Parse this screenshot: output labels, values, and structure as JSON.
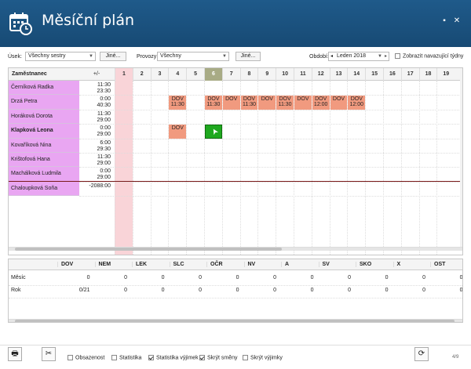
{
  "window": {
    "title": "Měsíční plán",
    "page_counter": "4/9"
  },
  "filters": {
    "usek_label": "Úsek:",
    "usek_value": "Všechny sestry",
    "usek_other": "Jiné...",
    "provozy_label": "Provozy:",
    "provozy_value": "Všechny",
    "provozy_other": "Jiné...",
    "obdobi_label": "Období:",
    "obdobi_value": "Leden 2018",
    "show_adjacent_label": "Zobrazit navazující týdny"
  },
  "plan": {
    "col_employee": "Zaměstnanec",
    "col_balance": "+/-",
    "days": [
      "1",
      "2",
      "3",
      "4",
      "5",
      "6",
      "7",
      "8",
      "9",
      "10",
      "11",
      "12",
      "13",
      "14",
      "15",
      "16",
      "17",
      "18",
      "19"
    ],
    "employees": [
      {
        "name": "Černíková Radka",
        "bal1": "11:30",
        "bal2": "23:30",
        "bold": false
      },
      {
        "name": "Drzá Petra",
        "bal1": "0:00",
        "bal2": "40:30",
        "bold": false
      },
      {
        "name": "Horáková Dorota",
        "bal1": "11:30",
        "bal2": "29:00",
        "bold": false
      },
      {
        "name": "Klapková Leona",
        "bal1": "0:00",
        "bal2": "29:00",
        "bold": true
      },
      {
        "name": "Kovaříková Nina",
        "bal1": "6:00",
        "bal2": "29:30",
        "bold": false
      },
      {
        "name": "Krištofová Hana",
        "bal1": "11:30",
        "bal2": "29:00",
        "bold": false
      },
      {
        "name": "Machálková Ludmila",
        "bal1": "0:00",
        "bal2": "29:00",
        "bold": false
      },
      {
        "name": "Chaloupková Soňa",
        "bal1": "-2088:00",
        "bal2": "",
        "bold": false
      }
    ],
    "shifts": [
      {
        "row": 1,
        "day": 4,
        "l1": "DOV",
        "l2": "11:30"
      },
      {
        "row": 1,
        "day": 6,
        "l1": "DOV",
        "l2": "11:30"
      },
      {
        "row": 1,
        "day": 7,
        "l1": "DOV",
        "l2": ""
      },
      {
        "row": 1,
        "day": 8,
        "l1": "DOV",
        "l2": "11:30"
      },
      {
        "row": 1,
        "day": 9,
        "l1": "DOV",
        "l2": ""
      },
      {
        "row": 1,
        "day": 10,
        "l1": "DOV",
        "l2": "11:30"
      },
      {
        "row": 1,
        "day": 11,
        "l1": "DOV",
        "l2": ""
      },
      {
        "row": 1,
        "day": 12,
        "l1": "DOV",
        "l2": "12:00"
      },
      {
        "row": 1,
        "day": 13,
        "l1": "DOV",
        "l2": ""
      },
      {
        "row": 1,
        "day": 14,
        "l1": "DOV",
        "l2": "12:00"
      },
      {
        "row": 3,
        "day": 4,
        "l1": "DOV",
        "l2": ""
      }
    ]
  },
  "stats": {
    "columns": [
      "DOV",
      "NEM",
      "LEK",
      "SLC",
      "OČR",
      "NV",
      "A",
      "SV",
      "SKO",
      "X",
      "OST"
    ],
    "rows": [
      {
        "label": "Měsíc",
        "values": [
          "0",
          "0",
          "0",
          "0",
          "0",
          "0",
          "0",
          "0",
          "0",
          "0",
          "0"
        ]
      },
      {
        "label": "Rok",
        "values": [
          "0/21",
          "0",
          "0",
          "0",
          "0",
          "0",
          "0",
          "0",
          "0",
          "0",
          "0"
        ]
      }
    ]
  },
  "bottom": {
    "obsazenost": "Obsazenost",
    "statistika": "Statistika",
    "statistika_vyjimek": "Statistika výjimek",
    "skryt_smeny": "Skrýt směny",
    "skryt_vyjimky": "Skrýt výjimky"
  },
  "colors": {
    "titlebar": "#1a5280",
    "employee_bg": "#e9a6f2",
    "shift_bg": "#f19a7f",
    "selected_bg": "#1fa81f",
    "weekend_header": "#a8ab85",
    "today_col": "#f9d4d8"
  }
}
